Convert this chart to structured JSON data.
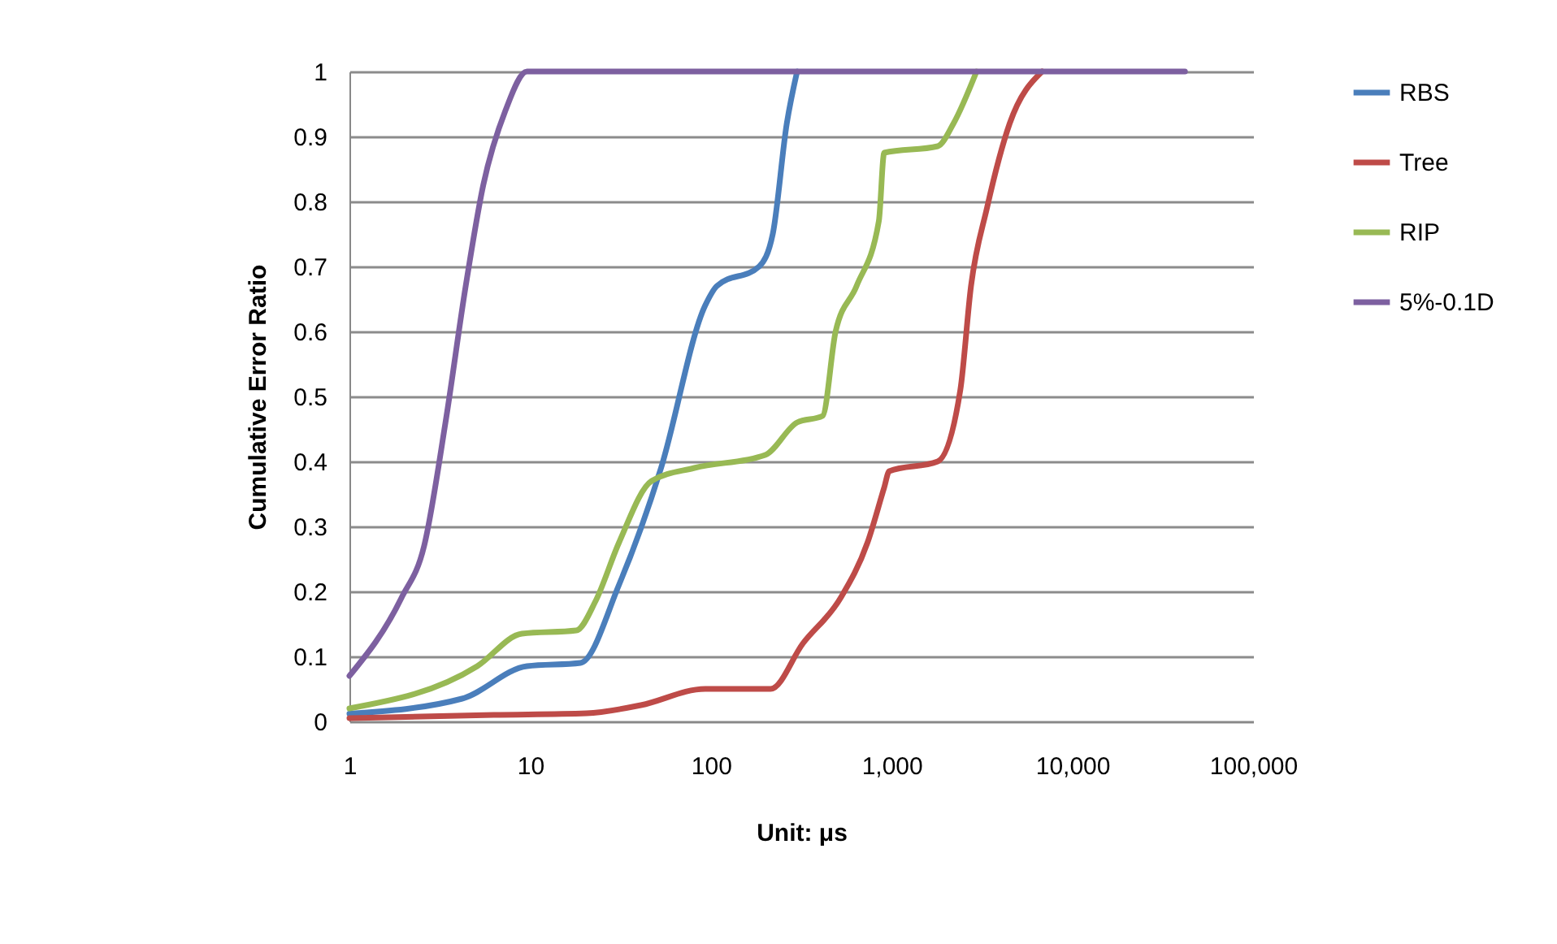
{
  "chart_data": {
    "type": "line",
    "xlabel": "Unit: μs",
    "ylabel": "Cumulative Error Ratio",
    "log": "x",
    "grid": "y",
    "legend": "right",
    "line_style": "solid",
    "marker": "none",
    "xlim": [
      1,
      100000
    ],
    "xticks": [
      1,
      10,
      100,
      {
        "value": 1000,
        "label": "1,000"
      },
      {
        "value": 10000,
        "label": "10,000"
      },
      {
        "value": 100000,
        "label": "100,000"
      }
    ],
    "ylim": [
      0,
      1
    ],
    "yticks": [
      0,
      0.1,
      0.2,
      0.3,
      0.4,
      0.5,
      0.6,
      0.7,
      0.8,
      0.9,
      1
    ],
    "series": [
      {
        "name": "RBS",
        "color": "#4a7ebb",
        "x": [
          1,
          4.2,
          9.6,
          19,
          31,
          53,
          93,
          108,
          185,
          220,
          263,
          300
        ],
        "values": [
          0.012,
          0.035,
          0.085,
          0.09,
          0.21,
          0.39,
          0.64,
          0.67,
          0.7,
          0.75,
          0.92,
          1.0
        ]
      },
      {
        "name": "Tree",
        "color": "#be4b48",
        "x": [
          1,
          6.3,
          20.5,
          41,
          93,
          185,
          214,
          323,
          522,
          735,
          910,
          970,
          1800,
          2400,
          2750,
          3370,
          4500,
          6800
        ],
        "values": [
          0.005,
          0.01,
          0.0125,
          0.025,
          0.05,
          0.05,
          0.05,
          0.12,
          0.19,
          0.275,
          0.36,
          0.385,
          0.4,
          0.51,
          0.67,
          0.79,
          0.92,
          1.0
        ]
      },
      {
        "name": "RIP",
        "color": "#98b954",
        "x": [
          1,
          5.1,
          9,
          18,
          23,
          31,
          47,
          81,
          200,
          300,
          415,
          490,
          640,
          850,
          910,
          1800,
          2200,
          2950
        ],
        "values": [
          0.02,
          0.085,
          0.135,
          0.14,
          0.185,
          0.275,
          0.37,
          0.39,
          0.41,
          0.46,
          0.47,
          0.6,
          0.67,
          0.77,
          0.875,
          0.885,
          0.92,
          1.0
        ]
      },
      {
        "name": "5%-0.1D",
        "color": "#7d60a0",
        "x": [
          1,
          1.94,
          2.59,
          3.4,
          4.4,
          5.5,
          7.3,
          9.6,
          42000
        ],
        "values": [
          0.07,
          0.19,
          0.27,
          0.46,
          0.67,
          0.825,
          0.94,
          1.0,
          1.0
        ]
      }
    ]
  }
}
